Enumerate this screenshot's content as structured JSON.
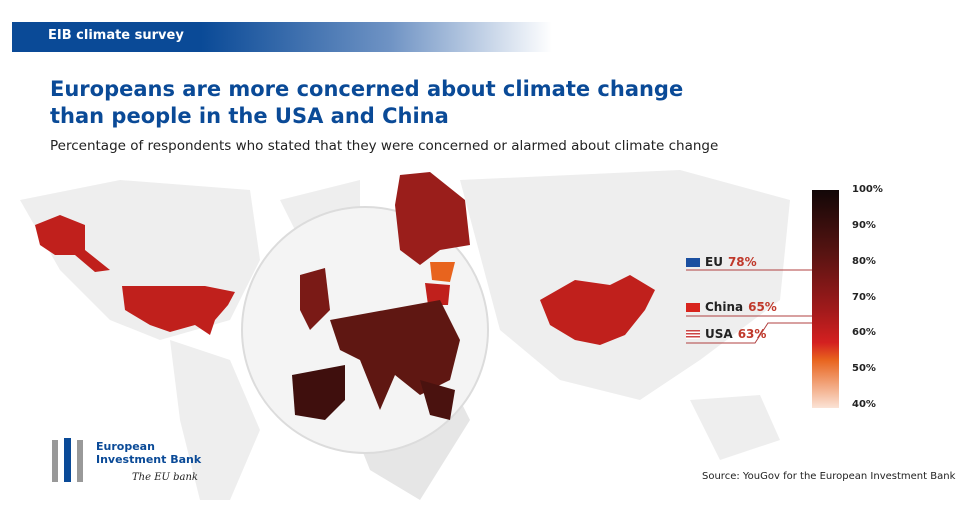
{
  "header": {
    "banner": "EIB climate survey",
    "title": "Europeans are more concerned about climate change than people in the USA and China",
    "subtitle": "Percentage of respondents who stated that they were concerned or alarmed about climate change"
  },
  "chart_data": {
    "type": "choropleth",
    "title": "Europeans are more concerned about climate change than people in the USA and China",
    "series": [
      {
        "name": "EU",
        "value": 78
      },
      {
        "name": "China",
        "value": 65
      },
      {
        "name": "USA",
        "value": 63
      }
    ],
    "scale": {
      "min": 40,
      "max": 100,
      "ticks": [
        "100%",
        "90%",
        "80%",
        "70%",
        "60%",
        "50%",
        "40%"
      ],
      "tick_values": [
        100,
        90,
        80,
        70,
        60,
        50,
        40
      ]
    },
    "colors": {
      "low": "#f7d9c8",
      "mid": "#e8641e",
      "high": "#c0171d",
      "top": "#120707"
    }
  },
  "callouts": [
    {
      "flag": "eu-flag-icon",
      "label": "EU",
      "value": "78%"
    },
    {
      "flag": "china-flag-icon",
      "label": "China",
      "value": "65%"
    },
    {
      "flag": "usa-flag-icon",
      "label": "USA",
      "value": "63%"
    }
  ],
  "footer": {
    "source": "Source: YouGov for the European Investment Bank",
    "logo_text": "European Investment Bank",
    "tagline": "The EU bank"
  }
}
